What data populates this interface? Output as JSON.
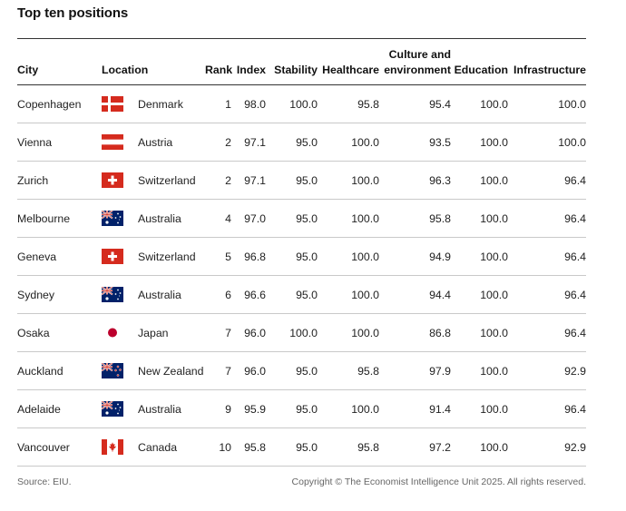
{
  "title": "Top ten positions",
  "headers": {
    "city": "City",
    "location": "Location",
    "rank": "Rank",
    "index": "Index",
    "stability": "Stability",
    "healthcare": "Healthcare",
    "culture_line1": "Culture and",
    "culture_line2": "environment",
    "education": "Education",
    "infrastructure": "Infrastructure"
  },
  "chart_data": {
    "type": "table",
    "title": "Top ten positions",
    "columns": [
      "City",
      "Location",
      "Rank",
      "Index",
      "Stability",
      "Healthcare",
      "Culture and environment",
      "Education",
      "Infrastructure"
    ],
    "rows": [
      {
        "city": "Copenhagen",
        "flag": "denmark-flag",
        "location": "Denmark",
        "rank": "1",
        "index": "98.0",
        "stability": "100.0",
        "healthcare": "95.8",
        "culture": "95.4",
        "education": "100.0",
        "infrastructure": "100.0"
      },
      {
        "city": "Vienna",
        "flag": "austria-flag",
        "location": "Austria",
        "rank": "2",
        "index": "97.1",
        "stability": "95.0",
        "healthcare": "100.0",
        "culture": "93.5",
        "education": "100.0",
        "infrastructure": "100.0"
      },
      {
        "city": "Zurich",
        "flag": "switzerland-flag",
        "location": "Switzerland",
        "rank": "2",
        "index": "97.1",
        "stability": "95.0",
        "healthcare": "100.0",
        "culture": "96.3",
        "education": "100.0",
        "infrastructure": "96.4"
      },
      {
        "city": "Melbourne",
        "flag": "australia-flag",
        "location": "Australia",
        "rank": "4",
        "index": "97.0",
        "stability": "95.0",
        "healthcare": "100.0",
        "culture": "95.8",
        "education": "100.0",
        "infrastructure": "96.4"
      },
      {
        "city": "Geneva",
        "flag": "switzerland-flag",
        "location": "Switzerland",
        "rank": "5",
        "index": "96.8",
        "stability": "95.0",
        "healthcare": "100.0",
        "culture": "94.9",
        "education": "100.0",
        "infrastructure": "96.4"
      },
      {
        "city": "Sydney",
        "flag": "australia-flag",
        "location": "Australia",
        "rank": "6",
        "index": "96.6",
        "stability": "95.0",
        "healthcare": "100.0",
        "culture": "94.4",
        "education": "100.0",
        "infrastructure": "96.4"
      },
      {
        "city": "Osaka",
        "flag": "japan-flag",
        "location": "Japan",
        "rank": "7",
        "index": "96.0",
        "stability": "100.0",
        "healthcare": "100.0",
        "culture": "86.8",
        "education": "100.0",
        "infrastructure": "96.4"
      },
      {
        "city": "Auckland",
        "flag": "new-zealand-flag",
        "location": "New Zealand",
        "rank": "7",
        "index": "96.0",
        "stability": "95.0",
        "healthcare": "95.8",
        "culture": "97.9",
        "education": "100.0",
        "infrastructure": "92.9"
      },
      {
        "city": "Adelaide",
        "flag": "australia-flag",
        "location": "Australia",
        "rank": "9",
        "index": "95.9",
        "stability": "95.0",
        "healthcare": "100.0",
        "culture": "91.4",
        "education": "100.0",
        "infrastructure": "96.4"
      },
      {
        "city": "Vancouver",
        "flag": "canada-flag",
        "location": "Canada",
        "rank": "10",
        "index": "95.8",
        "stability": "95.0",
        "healthcare": "95.8",
        "culture": "97.2",
        "education": "100.0",
        "infrastructure": "92.9"
      }
    ]
  },
  "footer": {
    "source": "Source: EIU.",
    "copyright": "Copyright © The Economist Intelligence Unit 2025. All rights reserved."
  },
  "colors": {
    "flag_red": "#d52b1e",
    "flag_blue": "#012169",
    "rule_dark": "#333333",
    "rule_light": "#c9c9c9"
  }
}
